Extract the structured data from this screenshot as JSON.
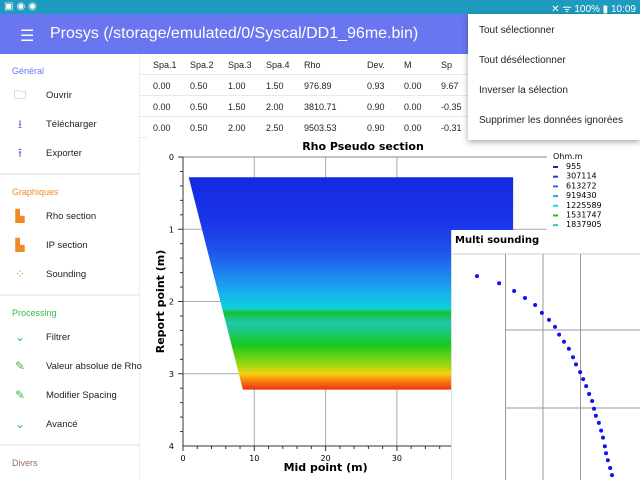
{
  "status": {
    "time": "10:09",
    "battery": "100%"
  },
  "appbar": {
    "title": "Prosys (/storage/emulated/0/Syscal/DD1_96me.bin)"
  },
  "sidebar": {
    "sections": [
      {
        "title": "Général",
        "color": "#6a76f0",
        "items": [
          {
            "label": "Ouvrir",
            "icon": "folder-icon"
          },
          {
            "label": "Télécharger",
            "icon": "download-icon"
          },
          {
            "label": "Exporter",
            "icon": "upload-icon"
          }
        ]
      },
      {
        "title": "Graphiques",
        "color": "#f08a24",
        "items": [
          {
            "label": "Rho section",
            "icon": "section-icon"
          },
          {
            "label": "IP section",
            "icon": "section-icon"
          },
          {
            "label": "Sounding",
            "icon": "scatter-icon"
          }
        ]
      },
      {
        "title": "Processing",
        "color": "#3cb84a",
        "items": [
          {
            "label": "Filtrer",
            "icon": "chevron-down-icon"
          },
          {
            "label": "Valeur absolue de Rho",
            "icon": "pencil-icon"
          },
          {
            "label": "Modifier Spacing",
            "icon": "pencil-icon"
          },
          {
            "label": "Avancé",
            "icon": "chevron-down-icon"
          }
        ]
      },
      {
        "title": "Divers",
        "color": "#9a6a60",
        "items": []
      }
    ]
  },
  "table": {
    "headers": [
      "Spa.1",
      "Spa.2",
      "Spa.3",
      "Spa.4",
      "Rho",
      "Dev.",
      "M",
      "Sp"
    ],
    "rows": [
      [
        "0.00",
        "0.50",
        "1.00",
        "1.50",
        "976.89",
        "0.93",
        "0.00",
        "9.67"
      ],
      [
        "0.00",
        "0.50",
        "1.50",
        "2.00",
        "3810.71",
        "0.90",
        "0.00",
        "-0.35"
      ],
      [
        "0.00",
        "0.50",
        "2.00",
        "2.50",
        "9503.53",
        "0.90",
        "0.00",
        "-0.31"
      ]
    ]
  },
  "dropdown": [
    "Tout sélectionner",
    "Tout désélectionner",
    "Inverser la sélection",
    "Supprimer les données ignorées"
  ],
  "chart_data": [
    {
      "type": "heatmap",
      "title": "Rho Pseudo section",
      "xlabel": "Mid point (m)",
      "ylabel": "Report point (m)",
      "xlim": [
        0,
        38
      ],
      "ylim": [
        4,
        0
      ],
      "xticks": [
        "0",
        "10",
        "20",
        "30"
      ],
      "yticks": [
        "0",
        "1",
        "2",
        "3",
        "4"
      ],
      "grid": true,
      "legend": {
        "title": "Ohm.m",
        "placement": "right",
        "entries": [
          "955",
          "307114",
          "613272",
          "919430",
          "1225589",
          "1531747",
          "1837905"
        ],
        "colors": [
          "#1a24b8",
          "#1f3ee0",
          "#2b6af0",
          "#1aa8f0",
          "#10d8e8",
          "#20b820",
          "#20c8c0"
        ]
      },
      "section": {
        "top_depth": 0.28,
        "bottom_depth": 3.22,
        "top_x": [
          0.8,
          46.3
        ],
        "bottom_x": [
          8.4,
          46.3
        ]
      },
      "bands": [
        [
          0.28,
          "#1428e0"
        ],
        [
          0.9,
          "#1a36e8"
        ],
        [
          1.3,
          "#1e52ec"
        ],
        [
          1.6,
          "#1e80f0"
        ],
        [
          1.9,
          "#18b4f0"
        ],
        [
          2.1,
          "#10d0d8"
        ],
        [
          2.15,
          "#14c030"
        ],
        [
          2.3,
          "#20c8b0"
        ],
        [
          2.6,
          "#18c820"
        ],
        [
          2.9,
          "#a8d810"
        ],
        [
          3.0,
          "#f8d010"
        ],
        [
          3.1,
          "#f88010"
        ],
        [
          3.22,
          "#f03010"
        ]
      ]
    },
    {
      "type": "scatter",
      "title": "Multi sounding",
      "xlim": [
        -0.5,
        4
      ],
      "ylim": [
        3,
        -0.3
      ],
      "grid": true,
      "color": "#1010f0",
      "points": [
        [
          0.24,
          0.31
        ],
        [
          0.83,
          0.4
        ],
        [
          1.23,
          0.5
        ],
        [
          1.52,
          0.59
        ],
        [
          1.79,
          0.68
        ],
        [
          1.97,
          0.78
        ],
        [
          2.16,
          0.87
        ],
        [
          2.32,
          0.96
        ],
        [
          2.43,
          1.06
        ],
        [
          2.56,
          1.15
        ],
        [
          2.69,
          1.24
        ],
        [
          2.8,
          1.35
        ],
        [
          2.88,
          1.44
        ],
        [
          2.99,
          1.54
        ],
        [
          3.07,
          1.63
        ],
        [
          3.15,
          1.72
        ],
        [
          3.23,
          1.82
        ],
        [
          3.31,
          1.91
        ],
        [
          3.36,
          2.01
        ],
        [
          3.41,
          2.1
        ],
        [
          3.49,
          2.19
        ],
        [
          3.55,
          2.29
        ],
        [
          3.6,
          2.38
        ],
        [
          3.65,
          2.49
        ],
        [
          3.68,
          2.58
        ],
        [
          3.73,
          2.67
        ],
        [
          3.79,
          2.77
        ],
        [
          3.84,
          2.86
        ]
      ]
    }
  ]
}
